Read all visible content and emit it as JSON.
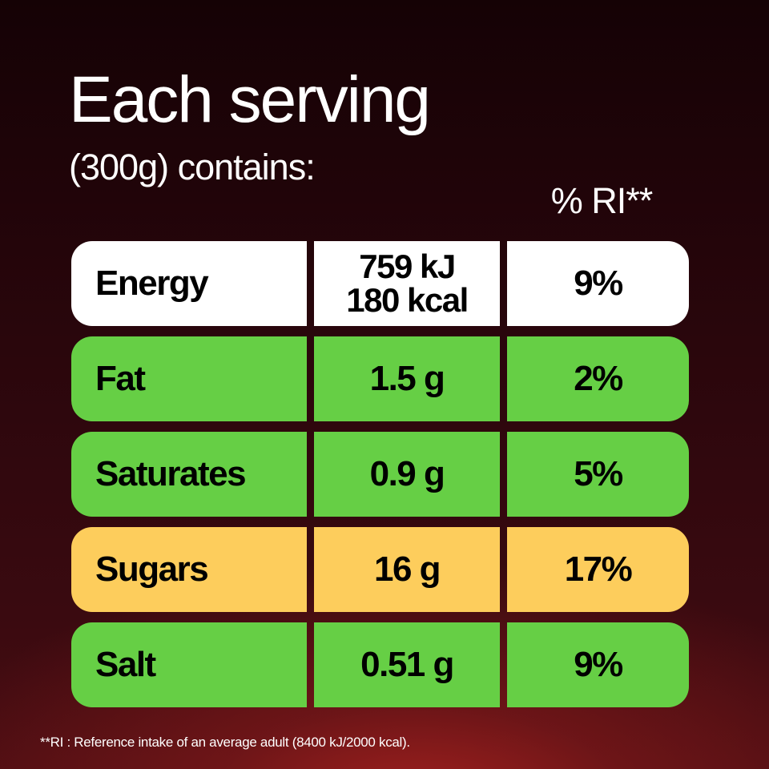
{
  "header": {
    "title": "Each serving",
    "subtitle": "(300g) contains:",
    "ri_label": "% RI**"
  },
  "rows": [
    {
      "name": "Energy",
      "amount_line1": "759 kJ",
      "amount_line2": "180 kcal",
      "ri": "9%",
      "color": "#ffffff"
    },
    {
      "name": "Fat",
      "amount": "1.5 g",
      "ri": "2%",
      "color": "#66cf45"
    },
    {
      "name": "Saturates",
      "amount": "0.9 g",
      "ri": "5%",
      "color": "#66cf45"
    },
    {
      "name": "Sugars",
      "amount": "16 g",
      "ri": "17%",
      "color": "#fdcd5c"
    },
    {
      "name": "Salt",
      "amount": "0.51 g",
      "ri": "9%",
      "color": "#66cf45"
    }
  ],
  "footnote": "**RI : Reference intake of an average adult (8400 kJ/2000 kcal)."
}
